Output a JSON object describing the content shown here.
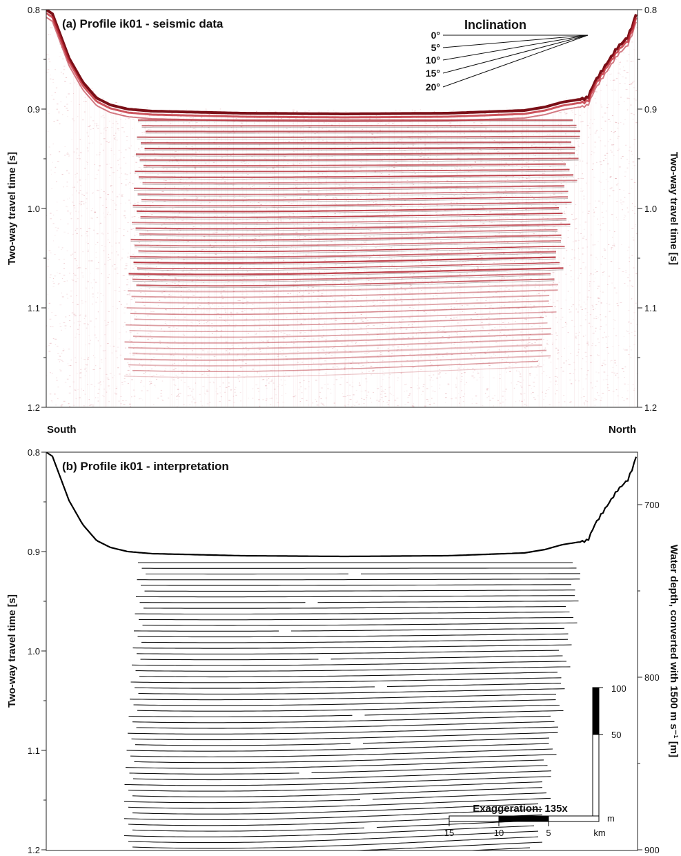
{
  "panel_a": {
    "title": "(a) Profile ik01 - seismic data",
    "y_label_left": "Two-way travel time [s]",
    "y_label_right": "Two-way travel  time [s]",
    "y_ticks": [
      "0.8",
      "0.9",
      "1.0",
      "1.1",
      "1.2"
    ],
    "y_range": [
      0.8,
      1.2
    ],
    "inclination": {
      "title": "Inclination",
      "angles": [
        "0°",
        "5°",
        "10°",
        "15°",
        "20°"
      ]
    },
    "colormap": "white-to-red seismic amplitude"
  },
  "direction": {
    "left": "South",
    "right": "North"
  },
  "panel_b": {
    "title": "(b) Profile ik01 - interpretation",
    "y_label_left": "Two-way travel time [s]",
    "y_label_right": "Water depth, converted with 1500 m s⁻¹ [m]",
    "y_ticks_left": [
      "0.8",
      "0.9",
      "1.0",
      "1.1",
      "1.2"
    ],
    "y_ticks_right": [
      "700",
      "800",
      "900"
    ],
    "vertical_scale": {
      "labels": [
        "100",
        "50",
        "m"
      ]
    },
    "horizontal_scale": {
      "labels": [
        "15",
        "10",
        "5",
        "km"
      ]
    },
    "exaggeration": "Exaggeration: 135x"
  }
}
